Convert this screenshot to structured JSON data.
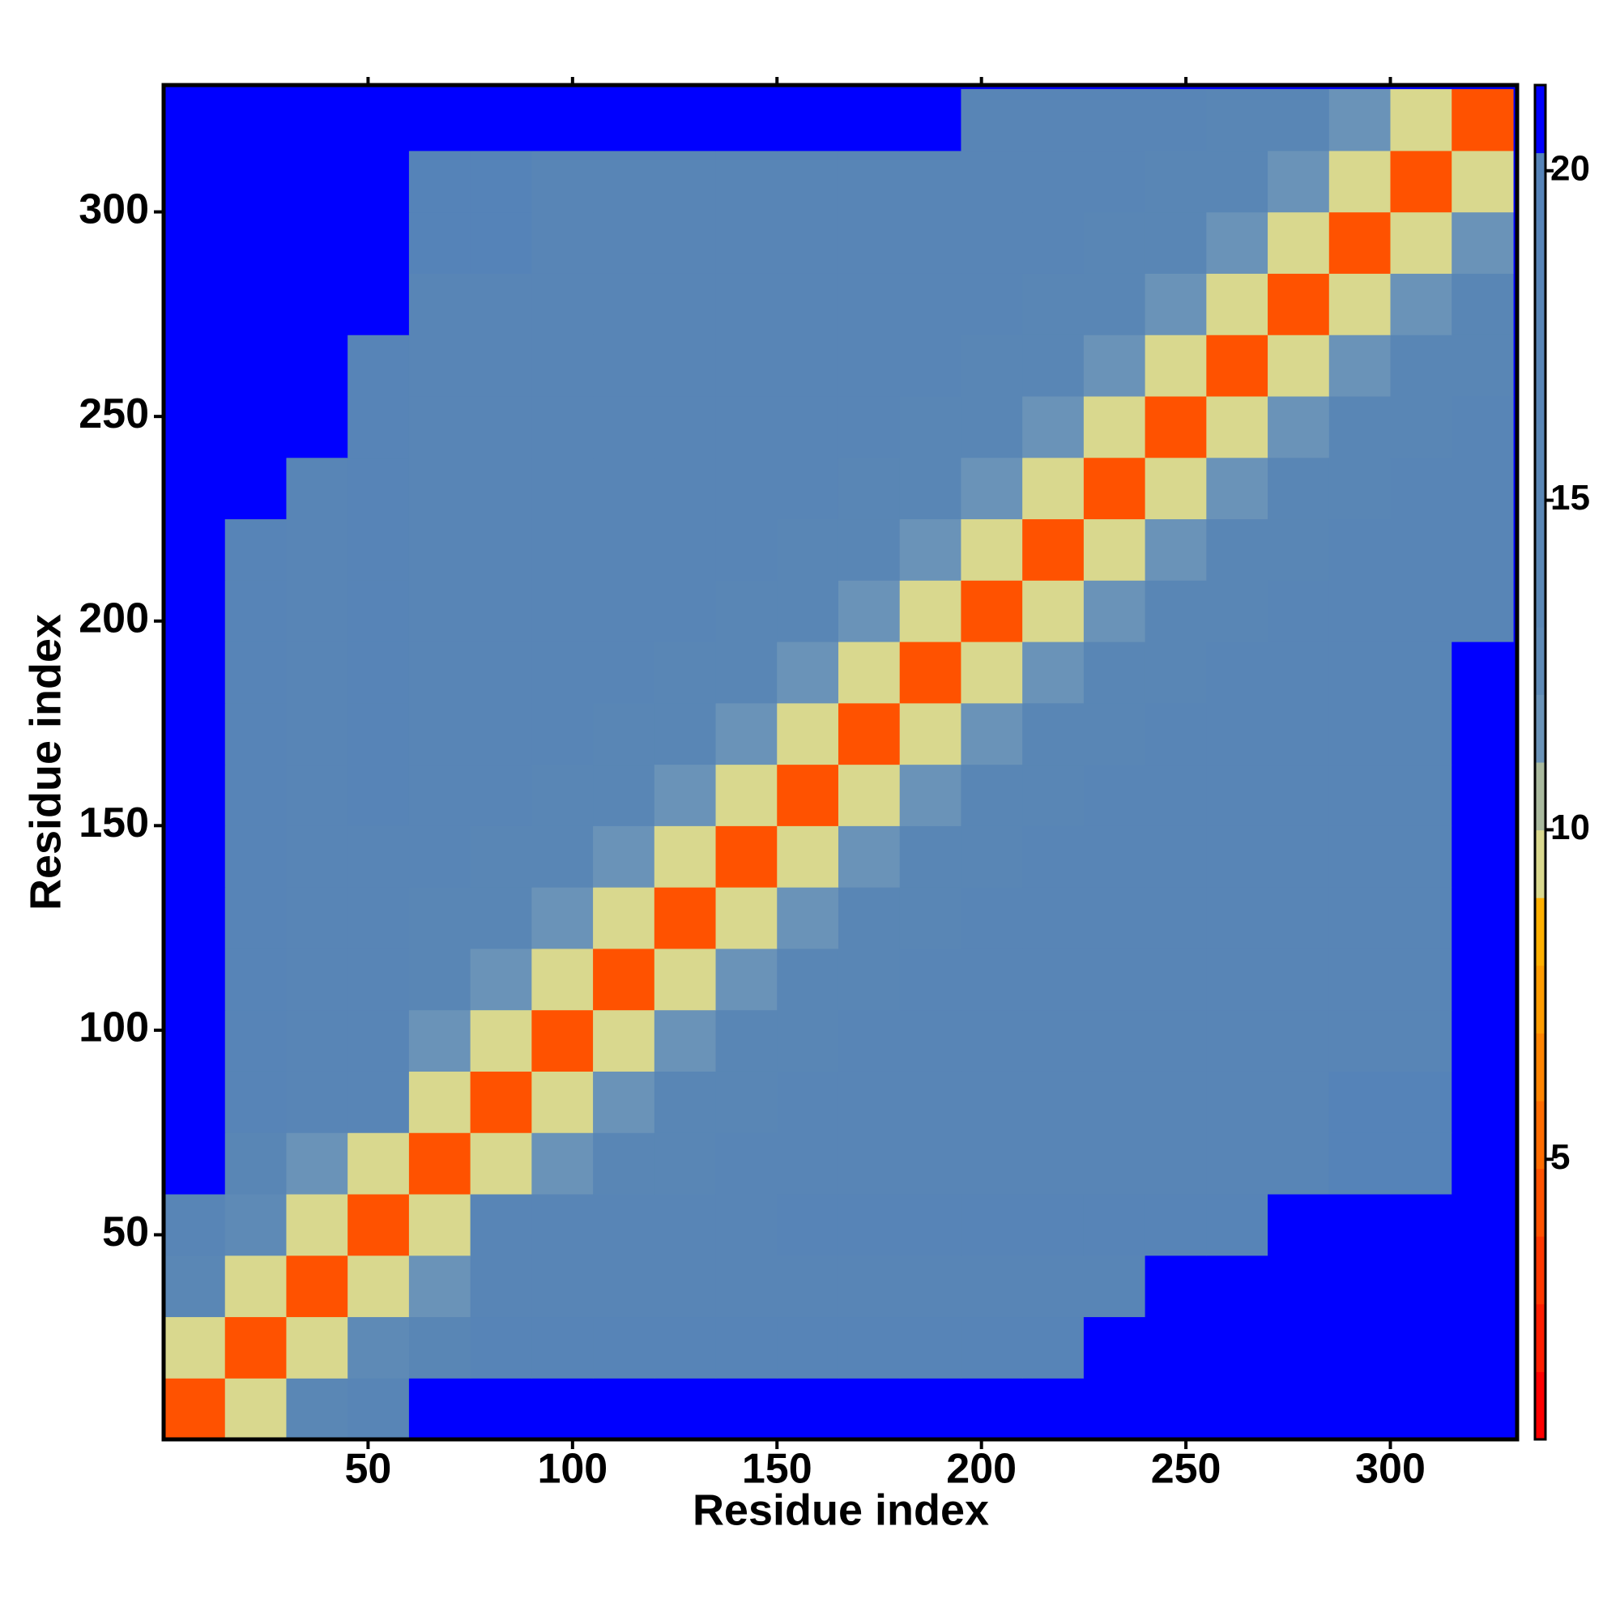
{
  "chart_data": {
    "type": "heatmap",
    "xlabel": "Residue index",
    "ylabel": "Residue index",
    "xlim": [
      0,
      331
    ],
    "ylim": [
      0,
      331
    ],
    "xticks": [
      50,
      100,
      150,
      200,
      250,
      300
    ],
    "yticks": [
      50,
      100,
      150,
      200,
      250,
      300
    ],
    "xbins": [
      0,
      15,
      30,
      45,
      60,
      75,
      90,
      105,
      120,
      135,
      150,
      165,
      180,
      195,
      210,
      225,
      240,
      255,
      270,
      285,
      300,
      315,
      330
    ],
    "ybins": [
      0,
      15,
      30,
      45,
      60,
      75,
      90,
      105,
      120,
      135,
      150,
      165,
      180,
      195,
      210,
      225,
      240,
      255,
      270,
      285,
      300,
      315,
      330
    ],
    "z": [
      [
        4,
        9,
        14,
        18,
        22,
        22,
        22,
        22,
        22,
        22,
        22,
        22,
        22,
        22,
        22,
        22,
        22,
        22,
        22,
        22,
        22,
        22
      ],
      [
        9,
        4,
        9,
        13,
        16,
        19,
        19,
        19,
        19,
        19,
        19,
        19,
        19,
        19,
        19,
        22,
        22,
        22,
        22,
        22,
        22,
        22
      ],
      [
        14,
        9,
        4,
        9,
        12,
        18,
        18,
        18,
        18,
        18,
        18,
        18,
        18,
        18,
        18,
        18,
        22,
        22,
        22,
        22,
        22,
        22
      ],
      [
        18,
        13,
        9,
        4,
        9,
        17,
        17,
        17,
        17,
        17,
        19,
        19,
        19,
        19,
        19,
        19,
        19,
        19,
        22,
        22,
        22,
        22
      ],
      [
        22,
        16,
        12,
        9,
        4,
        9,
        12,
        15,
        15,
        17,
        17,
        17,
        17,
        17,
        17,
        17,
        17,
        17,
        17,
        20,
        20,
        21
      ],
      [
        22,
        19,
        18,
        17,
        9,
        4,
        9,
        12,
        15,
        15,
        17,
        17,
        17,
        17,
        17,
        17,
        17,
        17,
        17,
        20,
        20,
        21
      ],
      [
        22,
        19,
        18,
        17,
        12,
        9,
        4,
        9,
        12,
        15,
        15,
        17,
        17,
        17,
        17,
        17,
        17,
        17,
        17,
        17,
        17,
        21
      ],
      [
        22,
        19,
        18,
        17,
        15,
        12,
        9,
        4,
        9,
        12,
        15,
        15,
        17,
        17,
        17,
        17,
        17,
        17,
        17,
        17,
        17,
        21
      ],
      [
        22,
        19,
        18,
        17,
        15,
        15,
        12,
        9,
        4,
        9,
        12,
        15,
        15,
        17,
        17,
        17,
        17,
        17,
        17,
        17,
        17,
        21
      ],
      [
        22,
        19,
        18,
        17,
        17,
        15,
        15,
        12,
        9,
        4,
        9,
        12,
        15,
        15,
        17,
        17,
        17,
        17,
        17,
        17,
        17,
        21
      ],
      [
        22,
        19,
        18,
        19,
        17,
        17,
        15,
        15,
        12,
        9,
        4,
        9,
        12,
        15,
        15,
        17,
        17,
        17,
        17,
        17,
        17,
        21
      ],
      [
        22,
        19,
        18,
        19,
        17,
        17,
        17,
        15,
        15,
        12,
        9,
        4,
        9,
        12,
        15,
        15,
        17,
        17,
        17,
        17,
        17,
        21
      ],
      [
        22,
        19,
        18,
        19,
        17,
        17,
        17,
        17,
        15,
        15,
        12,
        9,
        4,
        9,
        12,
        15,
        15,
        17,
        17,
        17,
        17,
        21
      ],
      [
        22,
        19,
        18,
        19,
        17,
        17,
        17,
        17,
        17,
        15,
        15,
        12,
        9,
        4,
        9,
        12,
        15,
        15,
        17,
        17,
        17,
        17
      ],
      [
        22,
        19,
        18,
        19,
        17,
        17,
        17,
        17,
        17,
        17,
        15,
        15,
        12,
        9,
        4,
        9,
        12,
        15,
        15,
        17,
        17,
        17
      ],
      [
        22,
        22,
        18,
        19,
        17,
        17,
        17,
        17,
        17,
        17,
        17,
        15,
        15,
        12,
        9,
        4,
        9,
        12,
        15,
        15,
        17,
        17
      ],
      [
        22,
        22,
        22,
        19,
        17,
        17,
        17,
        17,
        17,
        17,
        17,
        17,
        15,
        15,
        12,
        9,
        4,
        9,
        12,
        15,
        15,
        17
      ],
      [
        22,
        22,
        22,
        19,
        17,
        17,
        17,
        17,
        17,
        17,
        17,
        17,
        17,
        15,
        15,
        12,
        9,
        4,
        9,
        12,
        15,
        15
      ],
      [
        22,
        22,
        22,
        22,
        17,
        17,
        17,
        17,
        17,
        17,
        17,
        17,
        17,
        17,
        15,
        15,
        12,
        9,
        4,
        9,
        12,
        15
      ],
      [
        22,
        22,
        22,
        22,
        20,
        20,
        17,
        17,
        17,
        17,
        17,
        17,
        17,
        17,
        17,
        15,
        15,
        12,
        9,
        4,
        9,
        12
      ],
      [
        22,
        22,
        22,
        22,
        20,
        20,
        17,
        17,
        17,
        17,
        17,
        17,
        17,
        17,
        17,
        17,
        15,
        15,
        12,
        9,
        4,
        9
      ],
      [
        22,
        22,
        22,
        22,
        21,
        21,
        21,
        21,
        21,
        21,
        21,
        21,
        21,
        17,
        17,
        17,
        17,
        15,
        15,
        12,
        9,
        4
      ]
    ],
    "zlim": [
      0.75,
      21.3
    ],
    "zticks": [
      5,
      10,
      15,
      20
    ],
    "colormap": [
      "#ff0000",
      "#ff1e00",
      "#ff3800",
      "#ff5200",
      "#ff6c00",
      "#ff8400",
      "#ff9c00",
      "#ffb000",
      "#d9d88e",
      "#a9b99e",
      "#6a93b8",
      "#5e8ab6",
      "#5a87b5",
      "#5986b5",
      "#5986b5",
      "#5885b6",
      "#5885b6",
      "#5784b7",
      "#5583b8",
      "#0000ff"
    ]
  }
}
